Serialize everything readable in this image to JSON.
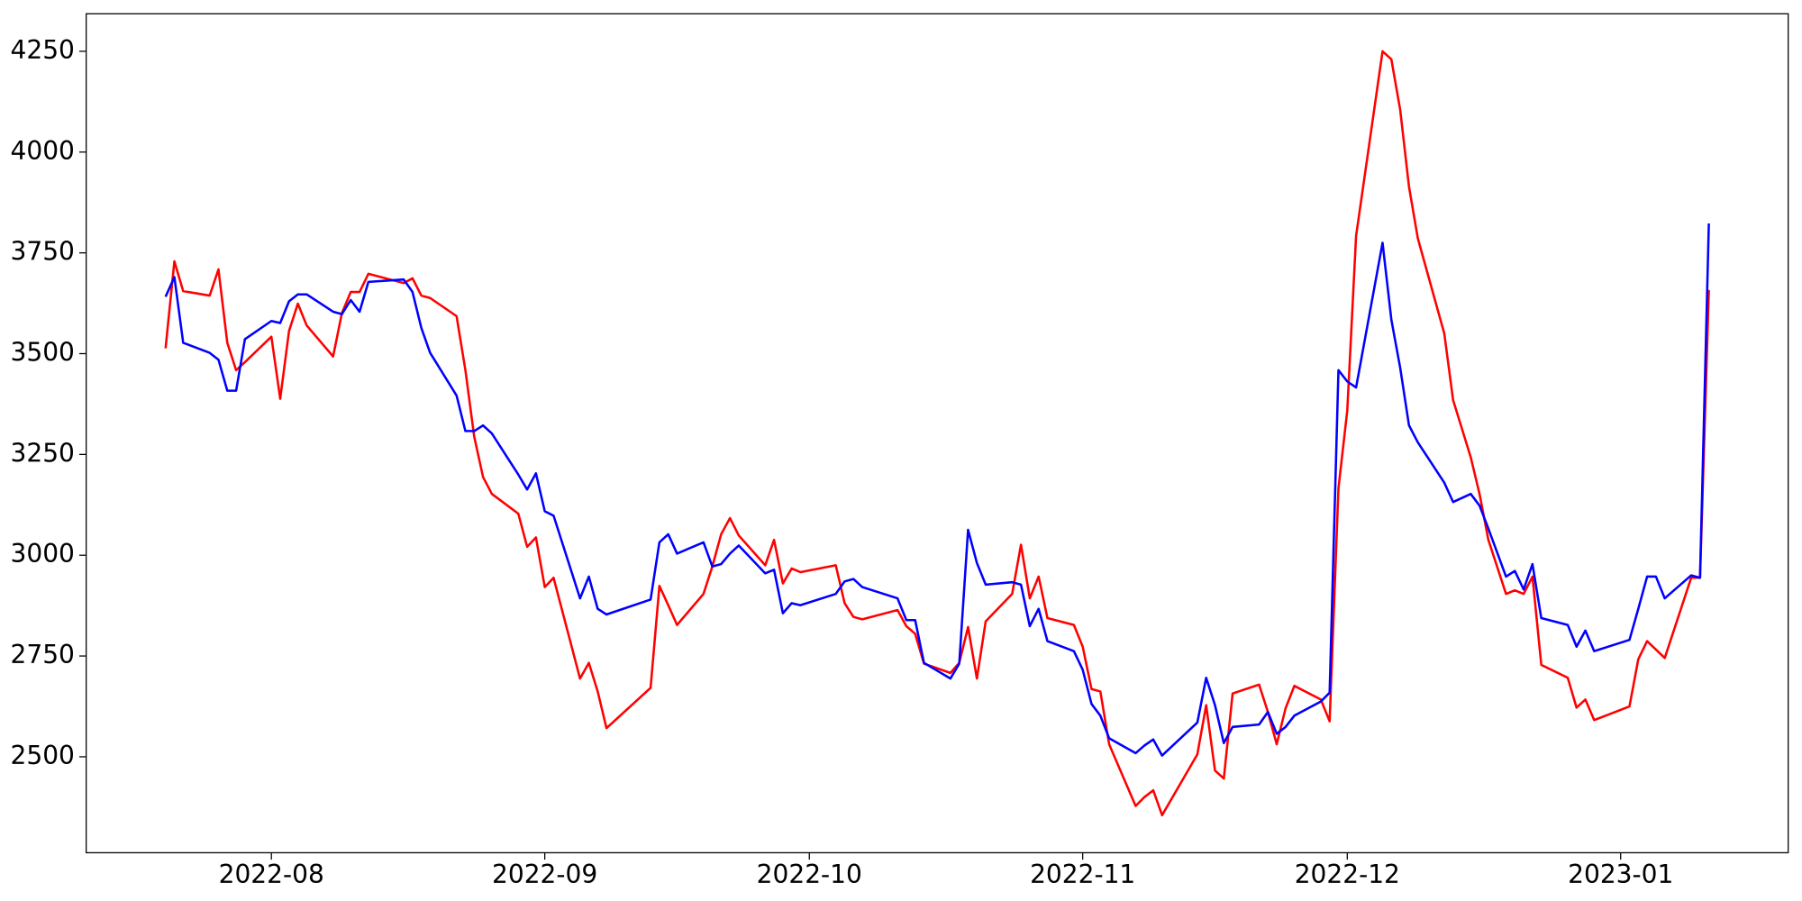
{
  "chart_data": {
    "type": "line",
    "x": [
      19193,
      19194,
      19195,
      19198,
      19199,
      19200,
      19201,
      19202,
      19205,
      19206,
      19207,
      19208,
      19209,
      19212,
      19213,
      19214,
      19215,
      19216,
      19220,
      19221,
      19222,
      19223,
      19226,
      19227,
      19228,
      19229,
      19230,
      19233,
      19234,
      19235,
      19236,
      19237,
      19240,
      19241,
      19242,
      19243,
      19248,
      19249,
      19250,
      19251,
      19254,
      19255,
      19256,
      19257,
      19258,
      19261,
      19262,
      19263,
      19264,
      19265,
      19269,
      19270,
      19271,
      19272,
      19276,
      19277,
      19278,
      19279,
      19282,
      19283,
      19284,
      19285,
      19286,
      19289,
      19290,
      19291,
      19292,
      19293,
      19296,
      19297,
      19298,
      19299,
      19300,
      19303,
      19304,
      19305,
      19306,
      19310,
      19311,
      19312,
      19313,
      19314,
      19317,
      19318,
      19319,
      19320,
      19321,
      19324,
      19325,
      19326,
      19327,
      19328,
      19331,
      19332,
      19333,
      19334,
      19335,
      19338,
      19339,
      19341,
      19342,
      19343,
      19345,
      19346,
      19347,
      19348,
      19349,
      19352,
      19353,
      19354,
      19355,
      19359,
      19360,
      19361,
      19362,
      19363,
      19366,
      19367,
      19368
    ],
    "series": [
      {
        "color": "#ff0000",
        "values": [
          3513,
          3729,
          3655,
          3644,
          3709,
          3527,
          3459,
          3479,
          3542,
          3388,
          3556,
          3624,
          3570,
          3493,
          3601,
          3653,
          3653,
          3698,
          3675,
          3687,
          3644,
          3638,
          3593,
          3459,
          3294,
          3194,
          3152,
          3103,
          3021,
          3044,
          2921,
          2944,
          2694,
          2733,
          2662,
          2571,
          2671,
          2924,
          2876,
          2827,
          2904,
          2972,
          3052,
          3092,
          3049,
          2975,
          3038,
          2930,
          2967,
          2958,
          2975,
          2881,
          2847,
          2841,
          2864,
          2824,
          2805,
          2731,
          2708,
          2733,
          2822,
          2694,
          2836,
          2904,
          3026,
          2893,
          2947,
          2844,
          2827,
          2773,
          2668,
          2662,
          2531,
          2378,
          2400,
          2417,
          2355,
          2506,
          2628,
          2466,
          2446,
          2657,
          2679,
          2611,
          2531,
          2620,
          2676,
          2642,
          2588,
          3166,
          3359,
          3792,
          4250,
          4230,
          4105,
          3914,
          3786,
          3550,
          3385,
          3243,
          3152,
          3038,
          2904,
          2913,
          2904,
          2947,
          2728,
          2696,
          2622,
          2642,
          2591,
          2625,
          2742,
          2787,
          2766,
          2745,
          2944,
          2944,
          3658
        ]
      },
      {
        "color": "#0000ff",
        "values": [
          3641,
          3690,
          3527,
          3502,
          3485,
          3408,
          3408,
          3536,
          3581,
          3576,
          3630,
          3647,
          3647,
          3604,
          3598,
          3633,
          3604,
          3678,
          3684,
          3653,
          3564,
          3502,
          3396,
          3308,
          3308,
          3322,
          3302,
          3200,
          3163,
          3203,
          3109,
          3098,
          2893,
          2947,
          2867,
          2853,
          2890,
          3032,
          3052,
          3004,
          3032,
          2972,
          2978,
          3004,
          3024,
          2955,
          2964,
          2856,
          2881,
          2876,
          2904,
          2935,
          2941,
          2921,
          2893,
          2839,
          2839,
          2733,
          2694,
          2731,
          3063,
          2981,
          2927,
          2933,
          2927,
          2824,
          2867,
          2787,
          2762,
          2716,
          2631,
          2602,
          2546,
          2509,
          2528,
          2543,
          2503,
          2585,
          2696,
          2628,
          2534,
          2574,
          2580,
          2611,
          2557,
          2574,
          2602,
          2637,
          2659,
          3459,
          3431,
          3416,
          3775,
          3584,
          3465,
          3322,
          3280,
          3180,
          3132,
          3152,
          3123,
          3066,
          2947,
          2961,
          2915,
          2978,
          2844,
          2827,
          2773,
          2813,
          2762,
          2790,
          2867,
          2947,
          2947,
          2893,
          2950,
          2944,
          3823
        ]
      }
    ],
    "xlim": [
      19184,
      19377
    ],
    "xticks": [
      {
        "value": 19205,
        "label": "2022-08"
      },
      {
        "value": 19236,
        "label": "2022-09"
      },
      {
        "value": 19266,
        "label": "2022-10"
      },
      {
        "value": 19297,
        "label": "2022-11"
      },
      {
        "value": 19327,
        "label": "2022-12"
      },
      {
        "value": 19358,
        "label": "2023-01"
      }
    ],
    "ylim": [
      2262,
      4343
    ],
    "yticks": [
      2500,
      2750,
      3000,
      3250,
      3500,
      3750,
      4000,
      4250
    ]
  }
}
